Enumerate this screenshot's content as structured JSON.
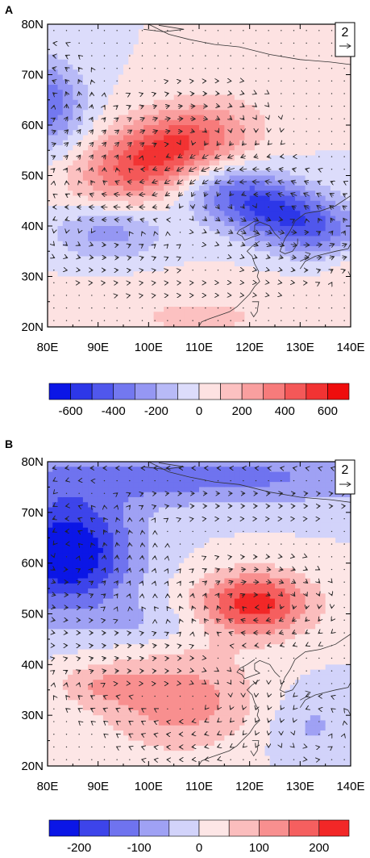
{
  "chart_data": [
    {
      "type": "heatmap",
      "panel_label": "A",
      "xlabel": "",
      "ylabel": "",
      "x_range": [
        80,
        140
      ],
      "y_range": [
        20,
        80
      ],
      "x_ticks": [
        80,
        90,
        100,
        110,
        120,
        130,
        140
      ],
      "x_tick_labels": [
        "80E",
        "90E",
        "100E",
        "110E",
        "120E",
        "130E",
        "140E"
      ],
      "y_ticks": [
        20,
        30,
        40,
        50,
        60,
        70,
        80
      ],
      "y_tick_labels": [
        "20N",
        "30N",
        "40N",
        "50N",
        "60N",
        "70N",
        "80N"
      ],
      "vector_reference": {
        "magnitude": 2,
        "label": "2"
      },
      "colorbar": {
        "levels": [
          -700,
          -600,
          -500,
          -400,
          -300,
          -200,
          -100,
          0,
          100,
          200,
          300,
          400,
          500,
          600,
          700
        ],
        "colors": [
          "#0b16e6",
          "#2d37e8",
          "#5057ec",
          "#7378f0",
          "#9597f3",
          "#b8baf7",
          "#dcdcfb",
          "#fde2e2",
          "#fcc1c1",
          "#f99f9f",
          "#f77b7b",
          "#f45858",
          "#f23333",
          "#ef0d0d"
        ],
        "tick_values": [
          -600,
          -400,
          -200,
          0,
          200,
          400,
          600
        ],
        "tick_labels": [
          "-600",
          "-400",
          "-200",
          "0",
          "200",
          "400",
          "600"
        ]
      },
      "field_centers": [
        {
          "lon": 103,
          "lat": 54,
          "value": 650,
          "sx": 11,
          "sy": 5.5,
          "tilt": -18
        },
        {
          "lon": 125,
          "lat": 43,
          "value": -560,
          "sx": 14,
          "sy": 4.5,
          "tilt": 20
        },
        {
          "lon": 80,
          "lat": 64,
          "value": -380,
          "sx": 5,
          "sy": 6
        },
        {
          "lon": 92,
          "lat": 39,
          "value": -260,
          "sx": 8,
          "sy": 4
        },
        {
          "lon": 140,
          "lat": 33,
          "value": 160,
          "sx": 4,
          "sy": 4
        },
        {
          "lon": 110,
          "lat": 22,
          "value": 110,
          "sx": 22,
          "sy": 5
        }
      ]
    },
    {
      "type": "heatmap",
      "panel_label": "B",
      "xlabel": "",
      "ylabel": "",
      "x_range": [
        80,
        140
      ],
      "y_range": [
        20,
        80
      ],
      "x_ticks": [
        80,
        90,
        100,
        110,
        120,
        130,
        140
      ],
      "x_tick_labels": [
        "80E",
        "90E",
        "100E",
        "110E",
        "120E",
        "130E",
        "140E"
      ],
      "y_ticks": [
        20,
        30,
        40,
        50,
        60,
        70,
        80
      ],
      "y_tick_labels": [
        "20N",
        "30N",
        "40N",
        "50N",
        "60N",
        "70N",
        "80N"
      ],
      "vector_reference": {
        "magnitude": 2,
        "label": "2"
      },
      "colorbar": {
        "levels": [
          -250,
          -200,
          -150,
          -100,
          -50,
          0,
          50,
          100,
          150,
          200,
          250
        ],
        "colors": [
          "#0b16e6",
          "#3d44ea",
          "#6f73ef",
          "#9fa1f4",
          "#d2d3fa",
          "#fde6e6",
          "#fbbdbd",
          "#f88f8f",
          "#f55f5f",
          "#f22727"
        ],
        "tick_values": [
          -200,
          -100,
          0,
          100,
          200
        ],
        "tick_labels": [
          "-200",
          "-100",
          "0",
          "100",
          "200"
        ]
      },
      "field_centers": [
        {
          "lon": 84,
          "lat": 62,
          "value": -260,
          "sx": 9,
          "sy": 8
        },
        {
          "lon": 110,
          "lat": 77,
          "value": -120,
          "sx": 30,
          "sy": 4
        },
        {
          "lon": 121,
          "lat": 52,
          "value": 230,
          "sx": 8,
          "sy": 4.5
        },
        {
          "lon": 106,
          "lat": 33,
          "value": 130,
          "sx": 11,
          "sy": 7
        },
        {
          "lon": 90,
          "lat": 36,
          "value": 70,
          "sx": 6,
          "sy": 3
        },
        {
          "lon": 132,
          "lat": 28,
          "value": -60,
          "sx": 6,
          "sy": 5
        },
        {
          "lon": 100,
          "lat": 48,
          "value": -50,
          "sx": 9,
          "sy": 3
        }
      ]
    }
  ]
}
